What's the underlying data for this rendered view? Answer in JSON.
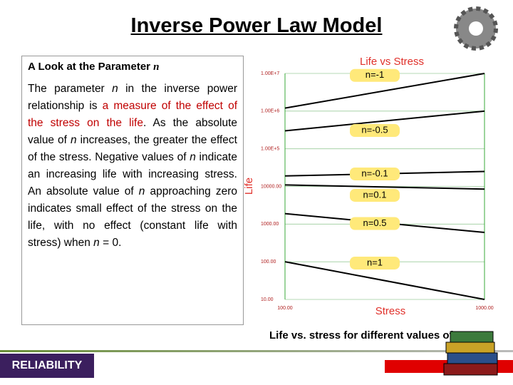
{
  "header": {
    "title": "Inverse Power Law Model"
  },
  "textbox": {
    "heading": [
      {
        "text": "A Look at the Parameter ",
        "style": "plain"
      },
      {
        "text": "n",
        "style": "italic"
      }
    ],
    "paragraph": [
      {
        "text": "The parameter ",
        "style": "plain"
      },
      {
        "text": "n",
        "style": "italic"
      },
      {
        "text": " in the inverse power relationship is ",
        "style": "plain"
      },
      {
        "text": "a measure of the effect of the stress on the life",
        "style": "red"
      },
      {
        "text": ". As the absolute value of ",
        "style": "plain"
      },
      {
        "text": "n",
        "style": "italic"
      },
      {
        "text": " increases, the greater the effect of the stress. Negative values of ",
        "style": "plain"
      },
      {
        "text": "n",
        "style": "italic"
      },
      {
        "text": " indicate an increasing life with increasing stress. An absolute value of ",
        "style": "plain"
      },
      {
        "text": "n",
        "style": "italic"
      },
      {
        "text": " approaching zero indicates small effect of the stress on the life, with no effect (constant life with stress) when ",
        "style": "plain"
      },
      {
        "text": "n",
        "style": "italic"
      },
      {
        "text": " = 0.",
        "style": "plain"
      }
    ]
  },
  "caption": "Life vs. stress for different values of n.",
  "footer": {
    "label": "RELIABILITY"
  },
  "chart_data": {
    "type": "line",
    "title": "Life vs Stress",
    "x_label": "Stress",
    "y_label": "Life",
    "log_x": true,
    "log_y": true,
    "grid": true,
    "x": [
      100,
      1000
    ],
    "xlim": [
      100,
      1000
    ],
    "xticks": [
      {
        "value": 100,
        "label": "100.00"
      },
      {
        "value": 1000,
        "label": "1000.00"
      }
    ],
    "ylim": [
      10,
      10000000
    ],
    "yticks": [
      {
        "value": 10,
        "label": "10.00"
      },
      {
        "value": 100,
        "label": "100.00"
      },
      {
        "value": 1000,
        "label": "1000.00"
      },
      {
        "value": 10000,
        "label": "10000.00"
      },
      {
        "value": 100000,
        "label": "1.00E+5"
      },
      {
        "value": 1000000,
        "label": "1.00E+6"
      },
      {
        "value": 10000000,
        "label": "1.00E+7"
      }
    ],
    "series": [
      {
        "name": "n=-1",
        "color": "#000000",
        "values": [
          1200000,
          10000000
        ]
      },
      {
        "name": "n=-0.5",
        "color": "#000000",
        "values": [
          300000,
          1000000
        ]
      },
      {
        "name": "n=-0.1",
        "color": "#000000",
        "values": [
          19000,
          25000
        ]
      },
      {
        "name": "n=0.1",
        "color": "#000000",
        "values": [
          11000,
          8500
        ]
      },
      {
        "name": "n=0.5",
        "color": "#000000",
        "values": [
          1900,
          600
        ]
      },
      {
        "name": "n=1",
        "color": "#000000",
        "values": [
          100,
          10
        ]
      }
    ]
  }
}
